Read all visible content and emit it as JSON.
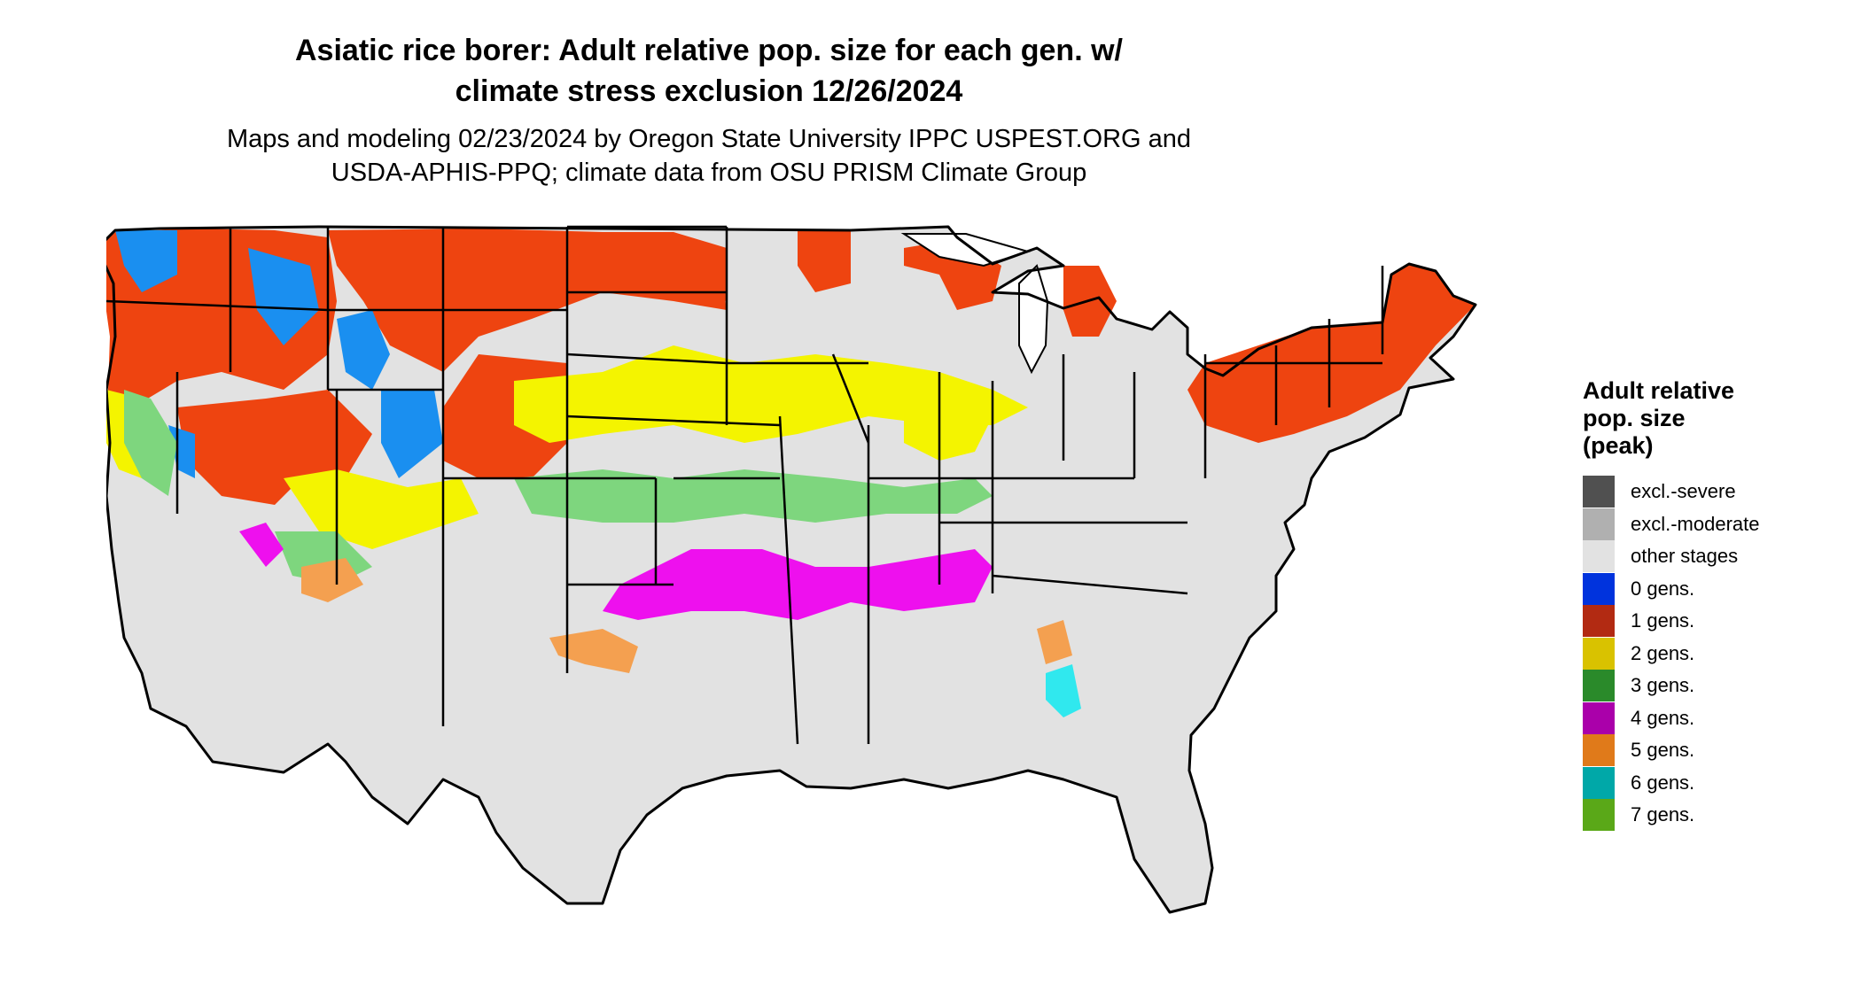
{
  "title_line1": "Asiatic rice borer: Adult relative pop. size for each gen. w/",
  "title_line2": "climate stress exclusion 12/26/2024",
  "subtitle_line1": "Maps and modeling 02/23/2024 by Oregon State University IPPC USPEST.ORG and",
  "subtitle_line2": "USDA-APHIS-PPQ; climate data from OSU PRISM Climate Group",
  "legend": {
    "title_line1": "Adult relative",
    "title_line2": "pop. size",
    "title_line3": "(peak)",
    "items": [
      {
        "label": "excl.-severe",
        "color": "#505050"
      },
      {
        "label": "excl.-moderate",
        "color": "#b0b0b0"
      },
      {
        "label": "other stages",
        "color": "#e2e2e2"
      },
      {
        "label": "0 gens.",
        "color": "#0033dd"
      },
      {
        "label": "1 gens.",
        "color": "#b22a12"
      },
      {
        "label": "2 gens.",
        "color": "#d9c200"
      },
      {
        "label": "3 gens.",
        "color": "#2a8a2a"
      },
      {
        "label": "4 gens.",
        "color": "#aa00aa"
      },
      {
        "label": "5 gens.",
        "color": "#e07a1a"
      },
      {
        "label": "6 gens.",
        "color": "#00a8a8"
      },
      {
        "label": "7 gens.",
        "color": "#5aa818"
      }
    ]
  },
  "map_colors": {
    "land": "#e2e2e2",
    "gen1_red": "#ee4410",
    "gen0_blue": "#1a8ff0",
    "gen2_yellow": "#f4f400",
    "gen3_green": "#7ed67e",
    "gen4_magenta": "#ee10ee",
    "gen5_orange": "#f4a050",
    "gen6_cyan": "#30e8ee",
    "border": "#000000"
  }
}
